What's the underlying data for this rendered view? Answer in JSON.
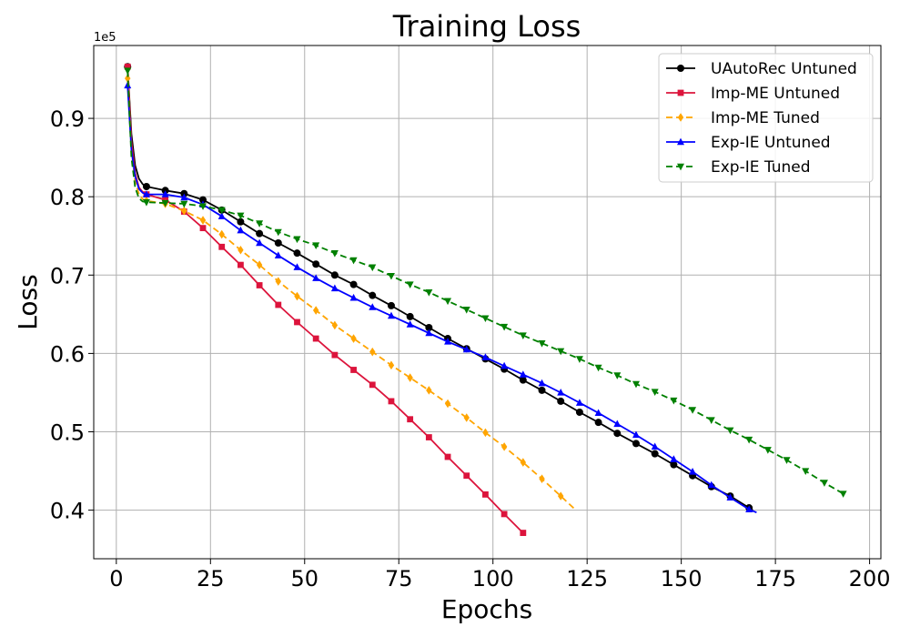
{
  "chart_data": {
    "type": "line",
    "title": "Training Loss",
    "xlabel": "Epochs",
    "ylabel": "Loss",
    "y_offset_label": "1e5",
    "xlim": [
      -6,
      203
    ],
    "ylim": [
      0.338,
      0.993
    ],
    "xticks": [
      0,
      25,
      50,
      75,
      100,
      125,
      150,
      175,
      200
    ],
    "yticks": [
      0.4,
      0.5,
      0.6,
      0.7,
      0.8,
      0.9
    ],
    "ytick_labels": [
      "0.4",
      "0.5",
      "0.6",
      "0.7",
      "0.8",
      "0.9"
    ],
    "grid": true,
    "legend_position": "top-right",
    "series": [
      {
        "name": "UAutoRec Untuned",
        "color": "#000000",
        "dash": "solid",
        "marker": "circle",
        "x": [
          3,
          4,
          5,
          6,
          7,
          8,
          13,
          18,
          23,
          28,
          33,
          38,
          43,
          48,
          53,
          58,
          63,
          68,
          73,
          78,
          83,
          88,
          93,
          98,
          103,
          108,
          113,
          118,
          123,
          128,
          133,
          138,
          143,
          148,
          153,
          158,
          163,
          168,
          169
        ],
        "y": [
          0.966,
          0.88,
          0.84,
          0.823,
          0.816,
          0.813,
          0.808,
          0.804,
          0.796,
          0.783,
          0.768,
          0.753,
          0.741,
          0.728,
          0.714,
          0.7,
          0.688,
          0.674,
          0.661,
          0.647,
          0.633,
          0.619,
          0.606,
          0.593,
          0.58,
          0.566,
          0.553,
          0.539,
          0.525,
          0.512,
          0.498,
          0.485,
          0.472,
          0.458,
          0.444,
          0.43,
          0.418,
          0.403,
          0.4
        ],
        "marker_x": [
          3,
          8,
          13,
          18,
          23,
          28,
          33,
          38,
          43,
          48,
          53,
          58,
          63,
          68,
          73,
          78,
          83,
          88,
          93,
          98,
          103,
          108,
          113,
          118,
          123,
          128,
          133,
          138,
          143,
          148,
          153,
          158,
          163,
          168
        ]
      },
      {
        "name": "Imp-ME Untuned",
        "color": "#dc143c",
        "dash": "solid",
        "marker": "square",
        "x": [
          3,
          4,
          5,
          6,
          7,
          8,
          13,
          18,
          23,
          28,
          33,
          38,
          43,
          48,
          53,
          58,
          63,
          68,
          73,
          78,
          83,
          88,
          93,
          98,
          103,
          108
        ],
        "y": [
          0.966,
          0.87,
          0.83,
          0.812,
          0.806,
          0.803,
          0.796,
          0.781,
          0.76,
          0.736,
          0.713,
          0.687,
          0.662,
          0.64,
          0.619,
          0.598,
          0.579,
          0.56,
          0.539,
          0.516,
          0.493,
          0.468,
          0.444,
          0.42,
          0.395,
          0.371
        ],
        "marker_x": [
          3,
          8,
          13,
          18,
          23,
          28,
          33,
          38,
          43,
          48,
          53,
          58,
          63,
          68,
          73,
          78,
          83,
          88,
          93,
          98,
          103,
          108
        ]
      },
      {
        "name": "Imp-ME Tuned",
        "color": "#ffa500",
        "dash": "dashed",
        "marker": "diamond",
        "x": [
          3,
          4,
          5,
          6,
          7,
          8,
          13,
          18,
          23,
          28,
          33,
          38,
          43,
          48,
          53,
          58,
          63,
          68,
          73,
          78,
          83,
          88,
          93,
          98,
          103,
          108,
          113,
          118,
          122
        ],
        "y": [
          0.951,
          0.86,
          0.82,
          0.803,
          0.797,
          0.795,
          0.791,
          0.782,
          0.77,
          0.752,
          0.732,
          0.713,
          0.692,
          0.673,
          0.655,
          0.636,
          0.619,
          0.602,
          0.585,
          0.569,
          0.553,
          0.536,
          0.518,
          0.499,
          0.481,
          0.461,
          0.44,
          0.418,
          0.4
        ],
        "marker_x": [
          3,
          8,
          13,
          18,
          23,
          28,
          33,
          38,
          43,
          48,
          53,
          58,
          63,
          68,
          73,
          78,
          83,
          88,
          93,
          98,
          103,
          108,
          113,
          118
        ]
      },
      {
        "name": "Exp-IE Untuned",
        "color": "#0000ff",
        "dash": "solid",
        "marker": "triangle-up",
        "x": [
          3,
          4,
          5,
          6,
          7,
          8,
          13,
          18,
          23,
          28,
          33,
          38,
          43,
          48,
          53,
          58,
          63,
          68,
          73,
          78,
          83,
          88,
          93,
          98,
          103,
          108,
          113,
          118,
          123,
          128,
          133,
          138,
          143,
          148,
          153,
          158,
          163,
          168,
          170
        ],
        "y": [
          0.942,
          0.86,
          0.826,
          0.81,
          0.805,
          0.803,
          0.803,
          0.799,
          0.79,
          0.775,
          0.757,
          0.741,
          0.725,
          0.71,
          0.696,
          0.683,
          0.671,
          0.659,
          0.648,
          0.637,
          0.626,
          0.615,
          0.605,
          0.595,
          0.584,
          0.573,
          0.562,
          0.55,
          0.537,
          0.524,
          0.51,
          0.496,
          0.481,
          0.465,
          0.449,
          0.432,
          0.416,
          0.401,
          0.397
        ],
        "marker_x": [
          3,
          8,
          13,
          18,
          23,
          28,
          33,
          38,
          43,
          48,
          53,
          58,
          63,
          68,
          73,
          78,
          83,
          88,
          93,
          98,
          103,
          108,
          113,
          118,
          123,
          128,
          133,
          138,
          143,
          148,
          153,
          158,
          163,
          168
        ]
      },
      {
        "name": "Exp-IE Tuned",
        "color": "#008000",
        "dash": "dashed",
        "marker": "triangle-down",
        "x": [
          3,
          4,
          5,
          6,
          7,
          8,
          13,
          18,
          23,
          28,
          33,
          38,
          43,
          48,
          53,
          58,
          63,
          68,
          73,
          78,
          83,
          88,
          93,
          98,
          103,
          108,
          113,
          118,
          123,
          128,
          133,
          138,
          143,
          148,
          153,
          158,
          163,
          168,
          173,
          178,
          183,
          188,
          193
        ],
        "y": [
          0.961,
          0.85,
          0.812,
          0.798,
          0.794,
          0.793,
          0.792,
          0.791,
          0.788,
          0.783,
          0.776,
          0.766,
          0.755,
          0.746,
          0.738,
          0.728,
          0.719,
          0.71,
          0.699,
          0.688,
          0.678,
          0.667,
          0.656,
          0.645,
          0.634,
          0.623,
          0.613,
          0.603,
          0.593,
          0.582,
          0.572,
          0.561,
          0.551,
          0.54,
          0.528,
          0.515,
          0.502,
          0.49,
          0.477,
          0.464,
          0.45,
          0.435,
          0.421
        ],
        "marker_x": [
          3,
          8,
          13,
          18,
          23,
          28,
          33,
          38,
          43,
          48,
          53,
          58,
          63,
          68,
          73,
          78,
          83,
          88,
          93,
          98,
          103,
          108,
          113,
          118,
          123,
          128,
          133,
          138,
          143,
          148,
          153,
          158,
          163,
          168,
          173,
          178,
          183,
          188,
          193
        ]
      }
    ]
  }
}
